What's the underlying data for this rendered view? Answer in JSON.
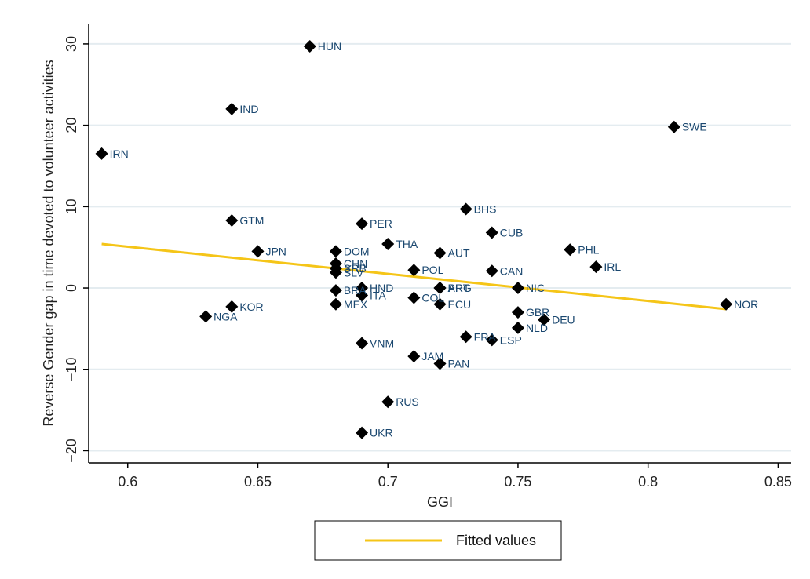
{
  "chart_data": {
    "type": "scatter",
    "xlabel": "GGI",
    "ylabel": "Reverse Gender gap in time devoted to volunteer activities",
    "xlim": [
      0.585,
      0.855
    ],
    "ylim": [
      -21.5,
      32.5
    ],
    "xticks": [
      0.6,
      0.65,
      0.7,
      0.75,
      0.8,
      0.85
    ],
    "xtick_labels": [
      "0.6",
      "0.65",
      "0.7",
      "0.75",
      "0.8",
      "0.85"
    ],
    "yticks": [
      -20,
      -10,
      0,
      10,
      20,
      30
    ],
    "ytick_labels": [
      "−20",
      "−10",
      "0",
      "10",
      "20",
      "30"
    ],
    "grid": "horizontal",
    "marker_color": "#000000",
    "label_color": "#1a476f",
    "fit_color": "#f5c518",
    "points": [
      {
        "label": "HUN",
        "x": 0.67,
        "y": 29.7
      },
      {
        "label": "IND",
        "x": 0.64,
        "y": 22.0
      },
      {
        "label": "IRN",
        "x": 0.59,
        "y": 16.5
      },
      {
        "label": "SWE",
        "x": 0.81,
        "y": 19.8
      },
      {
        "label": "BHS",
        "x": 0.73,
        "y": 9.7
      },
      {
        "label": "GTM",
        "x": 0.64,
        "y": 8.3
      },
      {
        "label": "PER",
        "x": 0.69,
        "y": 7.9
      },
      {
        "label": "CUB",
        "x": 0.74,
        "y": 6.8
      },
      {
        "label": "THA",
        "x": 0.7,
        "y": 5.4
      },
      {
        "label": "PHL",
        "x": 0.77,
        "y": 4.7
      },
      {
        "label": "JPN",
        "x": 0.65,
        "y": 4.5
      },
      {
        "label": "DOM",
        "x": 0.68,
        "y": 4.5
      },
      {
        "label": "AUT",
        "x": 0.72,
        "y": 4.3
      },
      {
        "label": "CHN",
        "x": 0.68,
        "y": 3.0
      },
      {
        "label": "IRL",
        "x": 0.78,
        "y": 2.6
      },
      {
        "label": "SRB",
        "x": 0.68,
        "y": 2.4
      },
      {
        "label": "POL",
        "x": 0.71,
        "y": 2.2
      },
      {
        "label": "CAN",
        "x": 0.74,
        "y": 2.1
      },
      {
        "label": "SLV",
        "x": 0.68,
        "y": 1.9
      },
      {
        "label": "NIC",
        "x": 0.75,
        "y": 0.0
      },
      {
        "label": "HND",
        "x": 0.69,
        "y": 0.0
      },
      {
        "label": "ARG",
        "x": 0.72,
        "y": 0.0
      },
      {
        "label": "PRT",
        "x": 0.72,
        "y": 0.0
      },
      {
        "label": "BRA",
        "x": 0.68,
        "y": -0.3
      },
      {
        "label": "ITA",
        "x": 0.69,
        "y": -0.9
      },
      {
        "label": "COL",
        "x": 0.71,
        "y": -1.2
      },
      {
        "label": "NOR",
        "x": 0.83,
        "y": -2.0
      },
      {
        "label": "MEX",
        "x": 0.68,
        "y": -2.0
      },
      {
        "label": "ECU",
        "x": 0.72,
        "y": -2.0
      },
      {
        "label": "KOR",
        "x": 0.64,
        "y": -2.3
      },
      {
        "label": "GBR",
        "x": 0.75,
        "y": -3.0
      },
      {
        "label": "NGA",
        "x": 0.63,
        "y": -3.5
      },
      {
        "label": "DEU",
        "x": 0.76,
        "y": -3.9
      },
      {
        "label": "NLD",
        "x": 0.75,
        "y": -4.9
      },
      {
        "label": "FRA",
        "x": 0.73,
        "y": -6.0
      },
      {
        "label": "ESP",
        "x": 0.74,
        "y": -6.4
      },
      {
        "label": "VNM",
        "x": 0.69,
        "y": -6.8
      },
      {
        "label": "JAM",
        "x": 0.71,
        "y": -8.4
      },
      {
        "label": "PAN",
        "x": 0.72,
        "y": -9.3
      },
      {
        "label": "RUS",
        "x": 0.7,
        "y": -14.0
      },
      {
        "label": "UKR",
        "x": 0.69,
        "y": -17.8
      }
    ],
    "series": [
      {
        "name": "Fitted values",
        "type": "line",
        "x": [
          0.59,
          0.83
        ],
        "y": [
          5.4,
          -2.6
        ]
      }
    ],
    "legend": {
      "placement": "bottom-center",
      "entries": [
        "Fitted values"
      ]
    }
  }
}
